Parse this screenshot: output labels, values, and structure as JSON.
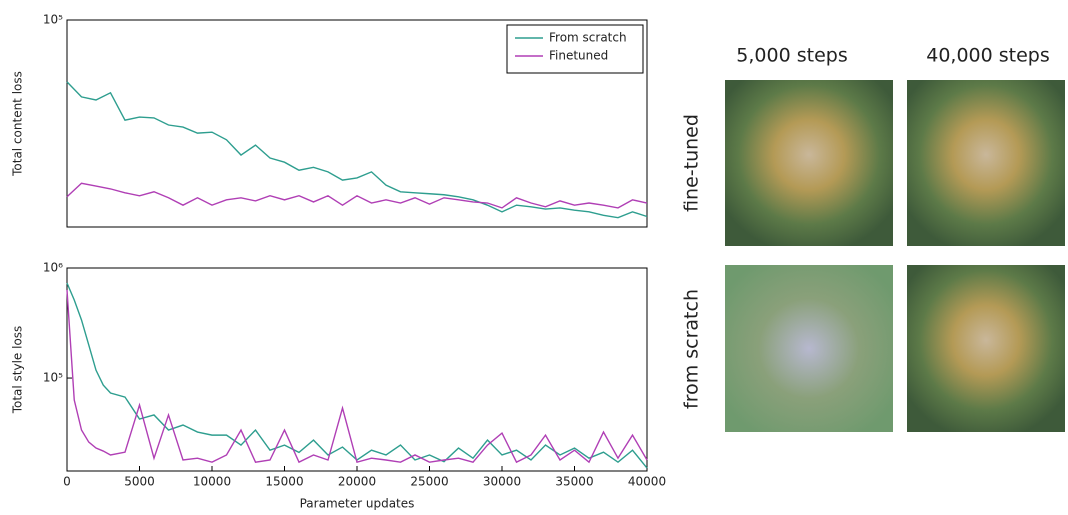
{
  "chart_data": [
    {
      "type": "line",
      "ylabel": "Total content loss",
      "yscale": "log",
      "legend": "upper right",
      "x": [
        0,
        1000,
        2000,
        3000,
        4000,
        5000,
        6000,
        7000,
        8000,
        9000,
        10000,
        11000,
        12000,
        13000,
        14000,
        15000,
        16000,
        17000,
        18000,
        19000,
        20000,
        21000,
        22000,
        23000,
        24000,
        25000,
        26000,
        27000,
        28000,
        29000,
        30000,
        31000,
        32000,
        33000,
        34000,
        35000,
        36000,
        37000,
        38000,
        39000,
        40000
      ],
      "xlim": [
        0,
        40000
      ],
      "ylim": [
        20000,
        100000
      ],
      "yticks": [
        {
          "value": 100000,
          "label": "10⁵"
        }
      ],
      "series": [
        {
          "name": "From scratch",
          "color": "#2e9e8f",
          "values": [
            61800,
            55000,
            53700,
            56800,
            45900,
            47000,
            46700,
            44200,
            43500,
            41500,
            41800,
            39400,
            35000,
            37800,
            34200,
            33100,
            31100,
            31800,
            30700,
            28800,
            29300,
            30700,
            27700,
            26300,
            26100,
            25900,
            25700,
            25300,
            24700,
            23700,
            22500,
            23700,
            23400,
            23000,
            23200,
            22800,
            22500,
            21900,
            21500,
            22500,
            21700
          ]
        },
        {
          "name": "Finetuned",
          "color": "#b03fb5",
          "values": [
            25300,
            28100,
            27500,
            26900,
            26100,
            25500,
            26300,
            25100,
            23700,
            25100,
            23700,
            24700,
            25100,
            24500,
            25500,
            24700,
            25500,
            24300,
            25500,
            23700,
            25500,
            24100,
            24700,
            24100,
            25100,
            23900,
            25100,
            24700,
            24300,
            24100,
            23200,
            25100,
            24100,
            23400,
            24500,
            23700,
            24100,
            23700,
            23200,
            24700,
            24100
          ]
        }
      ]
    },
    {
      "type": "line",
      "ylabel": "Total style loss",
      "xlabel": "Parameter updates",
      "yscale": "log",
      "x": [
        0,
        500,
        1000,
        1500,
        2000,
        2500,
        3000,
        4000,
        5000,
        6000,
        7000,
        8000,
        9000,
        10000,
        11000,
        12000,
        13000,
        14000,
        15000,
        16000,
        17000,
        18000,
        19000,
        20000,
        21000,
        22000,
        23000,
        24000,
        25000,
        26000,
        27000,
        28000,
        29000,
        30000,
        31000,
        32000,
        33000,
        34000,
        35000,
        36000,
        37000,
        38000,
        39000,
        40000
      ],
      "xlim": [
        0,
        40000
      ],
      "ylim": [
        14300,
        1000000
      ],
      "xticks": [
        0,
        5000,
        10000,
        15000,
        20000,
        25000,
        30000,
        35000,
        40000
      ],
      "yticks": [
        {
          "value": 100000,
          "label": "10⁵"
        },
        {
          "value": 1000000,
          "label": "10⁶"
        }
      ],
      "series": [
        {
          "color": "#2e9e8f",
          "values": [
            731000,
            512000,
            337000,
            200000,
            118000,
            86300,
            73100,
            67200,
            42400,
            46200,
            33700,
            37400,
            32300,
            30300,
            30300,
            24600,
            33700,
            22100,
            24600,
            21100,
            27300,
            20000,
            23600,
            18000,
            22100,
            20000,
            24600,
            18000,
            20000,
            17400,
            23100,
            18700,
            27300,
            20000,
            22100,
            18000,
            24600,
            20000,
            23100,
            18700,
            21200,
            17200,
            22100,
            15200
          ]
        },
        {
          "color": "#b03fb5",
          "values": [
            631000,
            63100,
            33700,
            26200,
            23100,
            21700,
            20000,
            21200,
            56900,
            18700,
            46200,
            18000,
            18700,
            17200,
            20000,
            33700,
            17200,
            18000,
            33700,
            17200,
            20000,
            18000,
            53400,
            17200,
            18700,
            18000,
            17200,
            20000,
            17200,
            18000,
            18700,
            17200,
            24600,
            31600,
            17200,
            20000,
            30300,
            18000,
            22100,
            17200,
            32300,
            18700,
            30300,
            18000
          ]
        }
      ]
    }
  ],
  "panel": {
    "columns": [
      "5,000 steps",
      "40,000 steps"
    ],
    "rows": [
      "fine-tuned",
      "from scratch"
    ]
  }
}
